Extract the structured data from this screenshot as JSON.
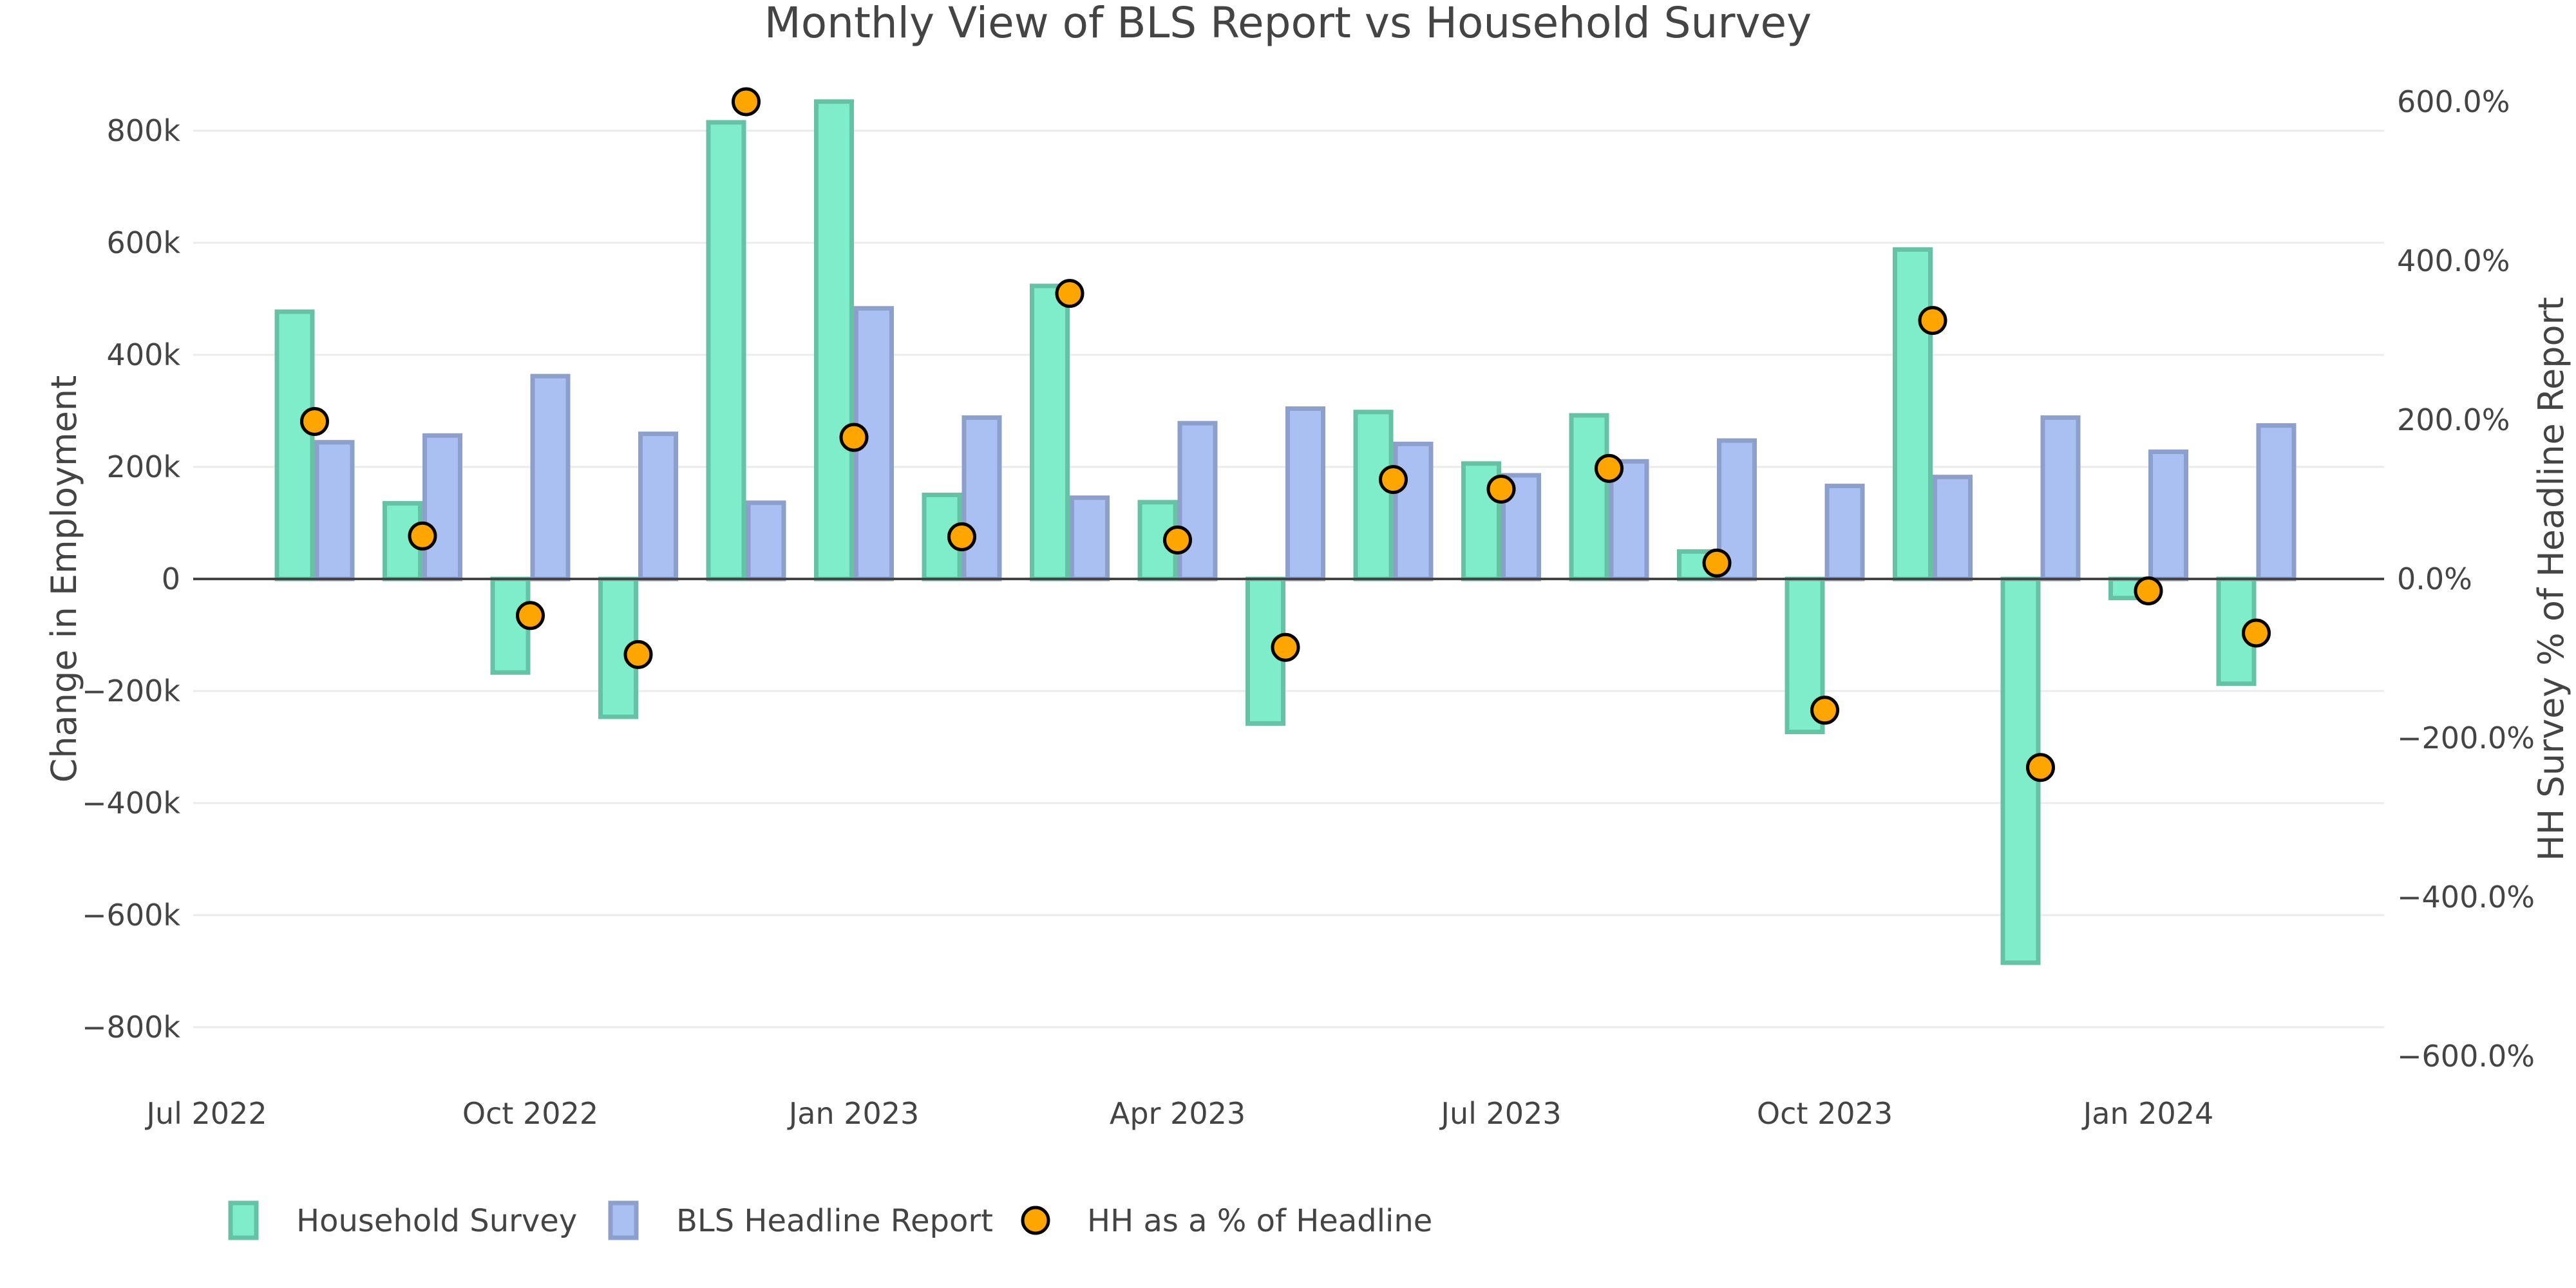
{
  "chart_data": {
    "type": "bar",
    "title": "Monthly View of BLS Report vs Household Survey",
    "xlabel": "",
    "ylabel": "Change in Employment",
    "y2label": "HH Survey % of Headline Report",
    "ylim": [
      -900000,
      900000
    ],
    "y2lim": [
      -634,
      634
    ],
    "grid": true,
    "legend_position": "bottom-left",
    "categories": [
      "2022-08",
      "2022-09",
      "2022-10",
      "2022-11",
      "2022-12",
      "2023-01",
      "2023-02",
      "2023-03",
      "2023-04",
      "2023-05",
      "2023-06",
      "2023-07",
      "2023-08",
      "2023-09",
      "2023-10",
      "2023-11",
      "2023-12",
      "2024-01",
      "2024-02"
    ],
    "x_ticks": [
      {
        "label": "Jul 2022",
        "month_index": 0
      },
      {
        "label": "Oct 2022",
        "month_index": 3
      },
      {
        "label": "Jan 2023",
        "month_index": 6
      },
      {
        "label": "Apr 2023",
        "month_index": 9
      },
      {
        "label": "Jul 2023",
        "month_index": 12
      },
      {
        "label": "Oct 2023",
        "month_index": 15
      },
      {
        "label": "Jan 2024",
        "month_index": 18
      }
    ],
    "y_ticks": [
      {
        "label": "800k",
        "value": 800000
      },
      {
        "label": "600k",
        "value": 600000
      },
      {
        "label": "400k",
        "value": 400000
      },
      {
        "label": "200k",
        "value": 200000
      },
      {
        "label": "0",
        "value": 0
      },
      {
        "label": "−200k",
        "value": -200000
      },
      {
        "label": "−400k",
        "value": -400000
      },
      {
        "label": "−600k",
        "value": -600000
      },
      {
        "label": "−800k",
        "value": -800000
      }
    ],
    "y2_ticks": [
      {
        "label": "600.0%",
        "value": 600
      },
      {
        "label": "400.0%",
        "value": 400
      },
      {
        "label": "200.0%",
        "value": 200
      },
      {
        "label": "0.0%",
        "value": 0
      },
      {
        "label": "−200.0%",
        "value": -200
      },
      {
        "label": "−400.0%",
        "value": -400
      },
      {
        "label": "−600.0%",
        "value": -600
      }
    ],
    "series": [
      {
        "name": "Household Survey",
        "type": "bar",
        "axis": "y",
        "fill": "#7FEDC9",
        "stroke": "#66C2A5",
        "values": [
          477000,
          135000,
          -167000,
          -246000,
          815000,
          852000,
          150000,
          523000,
          137000,
          -258000,
          298000,
          206000,
          292000,
          49000,
          -273000,
          588000,
          -685000,
          -34000,
          -187000
        ]
      },
      {
        "name": "BLS Headline Report",
        "type": "bar",
        "axis": "y",
        "fill": "#AABFF2",
        "stroke": "#8DA0CB",
        "values": [
          244000,
          256000,
          362000,
          259000,
          136000,
          483000,
          288000,
          145000,
          278000,
          304000,
          241000,
          185000,
          210000,
          247000,
          166000,
          182000,
          288000,
          227000,
          274000
        ]
      },
      {
        "name": "HH as a % of Headline",
        "type": "scatter",
        "axis": "y2",
        "fill": "#FFA500",
        "stroke": "#000000",
        "values": [
          198,
          54,
          -46,
          -95,
          600,
          178,
          53,
          359,
          49,
          -86,
          125,
          113,
          139,
          20,
          -165,
          325,
          -237,
          -15,
          -68
        ]
      }
    ]
  }
}
